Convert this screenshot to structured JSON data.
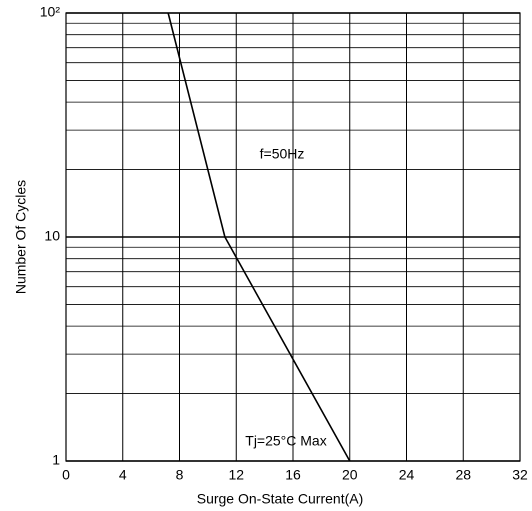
{
  "chart_data": {
    "type": "line",
    "x": [
      7.2,
      11.2,
      20
    ],
    "series": [
      {
        "color": "#000000",
        "values": [
          100,
          10,
          1
        ]
      }
    ],
    "xlabel": "Surge On-State Current(A)",
    "ylabel": "Number Of Cycles",
    "xlim": [
      0,
      32
    ],
    "xticks": [
      0,
      4,
      8,
      12,
      16,
      20,
      24,
      28,
      32
    ],
    "ylim": [
      1,
      100
    ],
    "ylog": true,
    "yticks": [
      1,
      10,
      {
        "value": 100,
        "label": "10²"
      }
    ],
    "yminorticks": [
      2,
      3,
      4,
      5,
      6,
      7,
      8,
      9,
      20,
      30,
      40,
      50,
      60,
      70,
      80,
      90
    ],
    "grid": true,
    "annotations": [
      "f=50Hz",
      "Tj=25°C Max"
    ]
  }
}
